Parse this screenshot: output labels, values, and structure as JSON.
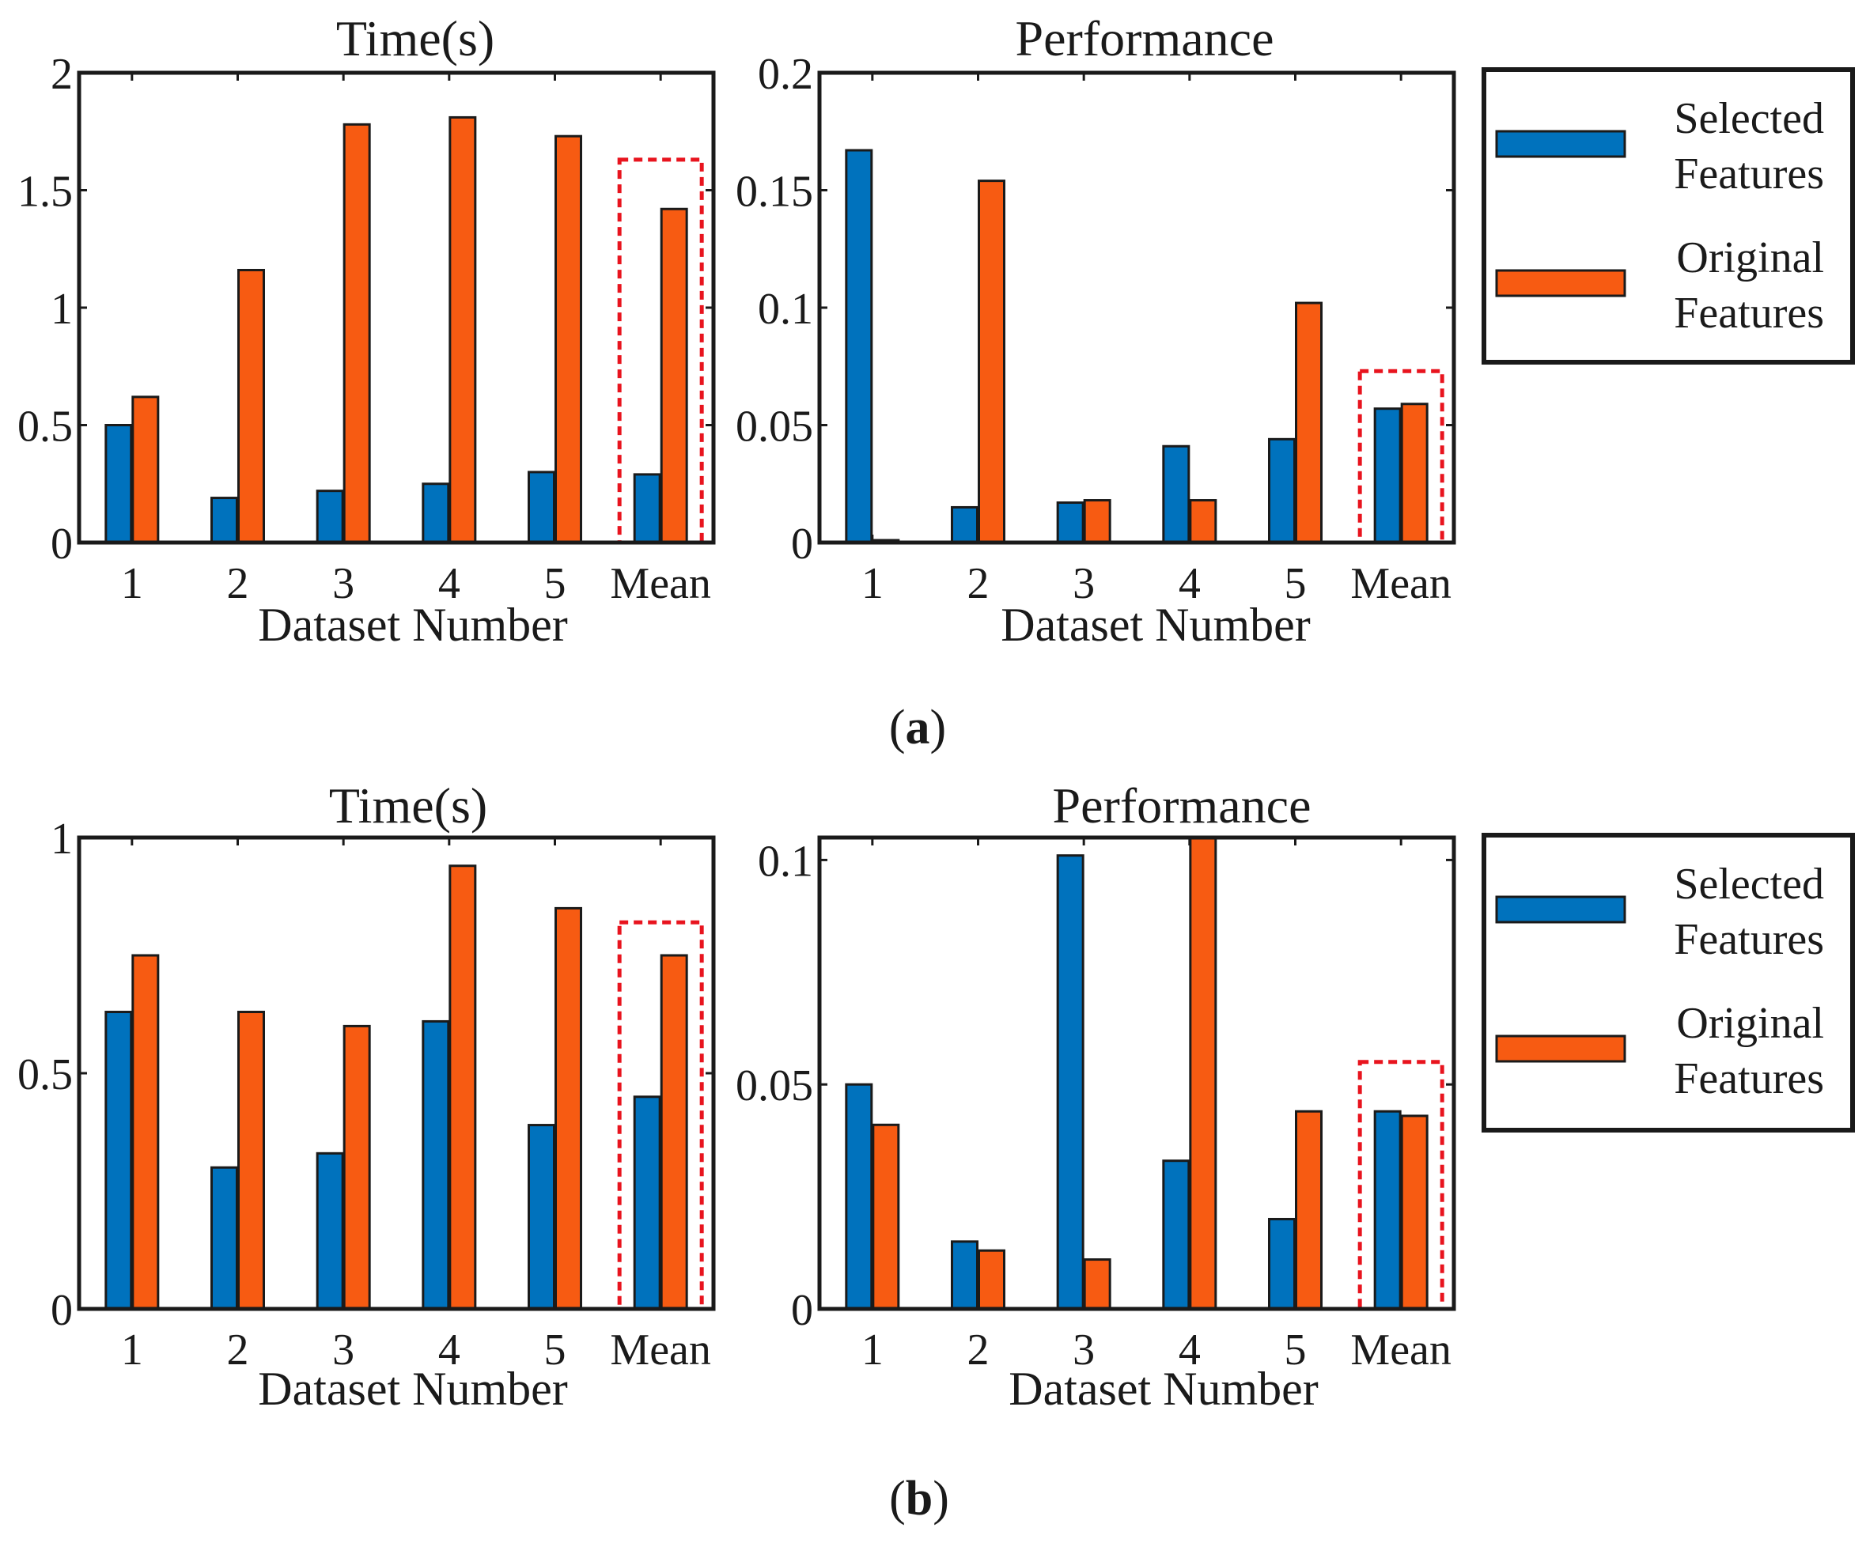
{
  "colors": {
    "selected": "#0072BD",
    "original": "#F75B12",
    "highlight": "#E8141E",
    "axis": "#1a1a1a"
  },
  "legend": {
    "items": [
      {
        "lines": [
          "Selected",
          "Features"
        ],
        "color": "#0072BD"
      },
      {
        "lines": [
          "Original",
          "Features"
        ],
        "color": "#F75B12"
      }
    ]
  },
  "captions": {
    "a": [
      "(",
      "a",
      ")"
    ],
    "b": [
      "(",
      "b",
      ")"
    ]
  },
  "chart_data": [
    {
      "id": "a-time",
      "panel": "a",
      "type": "bar",
      "title": "Time(s)",
      "xlabel": "Dataset Number",
      "ylabel": "",
      "categories": [
        "1",
        "2",
        "3",
        "4",
        "5",
        "Mean"
      ],
      "ylim": [
        0,
        2
      ],
      "yticks": [
        0,
        0.5,
        1,
        1.5,
        2
      ],
      "ytick_labels": [
        "0",
        "0.5",
        "1",
        "1.5",
        "2"
      ],
      "series": [
        {
          "name": "Selected Features",
          "values": [
            0.5,
            0.19,
            0.22,
            0.25,
            0.3,
            0.29
          ]
        },
        {
          "name": "Original Features",
          "values": [
            0.62,
            1.16,
            1.78,
            1.81,
            1.73,
            1.42
          ]
        }
      ],
      "highlight_category": "Mean",
      "highlight_top": 1.63
    },
    {
      "id": "a-performance",
      "panel": "a",
      "type": "bar",
      "title": "Performance",
      "xlabel": "Dataset Number",
      "ylabel": "",
      "categories": [
        "1",
        "2",
        "3",
        "4",
        "5",
        "Mean"
      ],
      "ylim": [
        0,
        0.2
      ],
      "yticks": [
        0,
        0.05,
        0.1,
        0.15,
        0.2
      ],
      "ytick_labels": [
        "0",
        "0.05",
        "0.1",
        "0.15",
        "0.2"
      ],
      "series": [
        {
          "name": "Selected Features",
          "values": [
            0.167,
            0.015,
            0.017,
            0.041,
            0.044,
            0.057
          ]
        },
        {
          "name": "Original Features",
          "values": [
            0.001,
            0.154,
            0.018,
            0.018,
            0.102,
            0.059
          ]
        }
      ],
      "highlight_category": "Mean",
      "highlight_top": 0.073
    },
    {
      "id": "b-time",
      "panel": "b",
      "type": "bar",
      "title": "Time(s)",
      "xlabel": "Dataset Number",
      "ylabel": "",
      "categories": [
        "1",
        "2",
        "3",
        "4",
        "5",
        "Mean"
      ],
      "ylim": [
        0,
        1
      ],
      "yticks": [
        0,
        0.5,
        1
      ],
      "ytick_labels": [
        "0",
        "0.5",
        "1"
      ],
      "series": [
        {
          "name": "Selected Features",
          "values": [
            0.63,
            0.3,
            0.33,
            0.61,
            0.39,
            0.45
          ]
        },
        {
          "name": "Original Features",
          "values": [
            0.75,
            0.63,
            0.6,
            0.94,
            0.85,
            0.75
          ]
        }
      ],
      "highlight_category": "Mean",
      "highlight_top": 0.82
    },
    {
      "id": "b-performance",
      "panel": "b",
      "type": "bar",
      "title": "Performance",
      "xlabel": "Dataset Number",
      "ylabel": "",
      "categories": [
        "1",
        "2",
        "3",
        "4",
        "5",
        "Mean"
      ],
      "ylim": [
        0,
        0.105
      ],
      "yticks": [
        0,
        0.05,
        0.1
      ],
      "ytick_labels": [
        "0",
        "0.05",
        "0.1"
      ],
      "series": [
        {
          "name": "Selected Features",
          "values": [
            0.05,
            0.015,
            0.101,
            0.033,
            0.02,
            0.044
          ]
        },
        {
          "name": "Original Features",
          "values": [
            0.041,
            0.013,
            0.011,
            0.105,
            0.044,
            0.043
          ]
        }
      ],
      "highlight_category": "Mean",
      "highlight_top": 0.055
    }
  ]
}
